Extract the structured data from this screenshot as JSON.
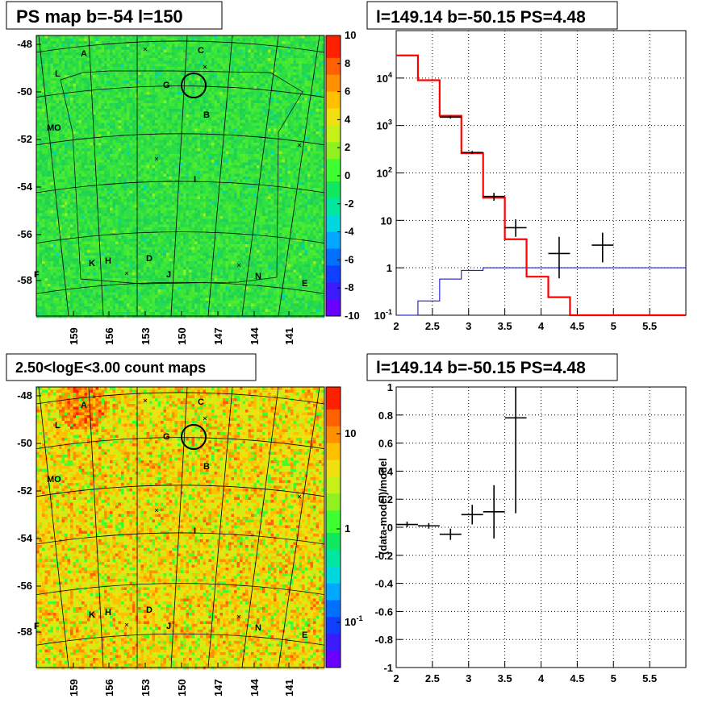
{
  "chart_data": [
    {
      "type": "heatmap",
      "title": "PS map b=-54 l=150",
      "xticks": [
        "159",
        "156",
        "153",
        "150",
        "147",
        "144",
        "141"
      ],
      "yticks": [
        "-48",
        "-50",
        "-52",
        "-54",
        "-56",
        "-58"
      ],
      "colorbar": {
        "scale": "linear",
        "ticks": [
          "10",
          "8",
          "6",
          "4",
          "2",
          "0",
          "-2",
          "-4",
          "-6",
          "-8",
          "-10"
        ],
        "range": [
          -10,
          10
        ]
      },
      "sources": [
        "A",
        "C",
        "L",
        "G",
        "B",
        "MO",
        "I",
        "K",
        "H",
        "D",
        "J",
        "N",
        "E",
        "F"
      ],
      "highlight_circle": {
        "l": 149.14,
        "b": -50.15
      }
    },
    {
      "type": "line",
      "title": "l=149.14 b=-50.15 PS=4.48",
      "xlim": [
        2,
        6
      ],
      "ylim": [
        0.1,
        100000
      ],
      "yscale": "log",
      "xticks": [
        "2",
        "2.5",
        "3",
        "3.5",
        "4",
        "4.5",
        "5",
        "5.5"
      ],
      "yticks": [
        "10^{-1}",
        "1",
        "10",
        "10^{2}",
        "10^{3}",
        "10^{4}"
      ],
      "model_red": {
        "edges": [
          2,
          2.3,
          2.6,
          2.9,
          3.2,
          3.5,
          3.8,
          4.1,
          4.4,
          4.7,
          5,
          5.3,
          5.6,
          5.9,
          6
        ],
        "values": [
          30000,
          9000,
          1600,
          260,
          30,
          4,
          0.65,
          0.24,
          0.1,
          0.1,
          0.1,
          0.1,
          0.1,
          0.1
        ]
      },
      "model_blue": {
        "edges": [
          2,
          2.3,
          2.6,
          2.9,
          3.2,
          3.5,
          3.8,
          4.1,
          4.4,
          4.7,
          5,
          5.3,
          5.6,
          5.9,
          6
        ],
        "values": [
          0.05,
          0.2,
          0.58,
          0.88,
          1,
          1,
          1,
          1,
          1,
          1,
          1,
          1,
          1,
          1
        ]
      },
      "data": [
        {
          "x": 2.75,
          "xerr": 0.15,
          "y": 1500,
          "ylo": 1400,
          "yhi": 1600
        },
        {
          "x": 3.05,
          "xerr": 0.15,
          "y": 270,
          "ylo": 250,
          "yhi": 290
        },
        {
          "x": 3.35,
          "xerr": 0.15,
          "y": 32,
          "ylo": 26,
          "yhi": 38
        },
        {
          "x": 3.65,
          "xerr": 0.15,
          "y": 7,
          "ylo": 4.5,
          "yhi": 10.5
        },
        {
          "x": 4.25,
          "xerr": 0.15,
          "y": 2,
          "ylo": 0.6,
          "yhi": 4.5
        },
        {
          "x": 4.85,
          "xerr": 0.15,
          "y": 3,
          "ylo": 1.3,
          "yhi": 5.5
        }
      ]
    },
    {
      "type": "heatmap",
      "title": "2.50<logE<3.00 count maps",
      "xticks": [
        "159",
        "156",
        "153",
        "150",
        "147",
        "144",
        "141"
      ],
      "yticks": [
        "-48",
        "-50",
        "-52",
        "-54",
        "-56",
        "-58"
      ],
      "colorbar": {
        "scale": "log",
        "ticks": [
          "10",
          "1",
          "10^{-1}"
        ]
      },
      "sources": [
        "A",
        "C",
        "L",
        "G",
        "B",
        "MO",
        "I",
        "K",
        "H",
        "D",
        "J",
        "N",
        "E",
        "F"
      ]
    },
    {
      "type": "scatter",
      "title": "l=149.14 b=-50.15 PS=4.48",
      "ylabel": "(data-model)/model",
      "xlim": [
        2,
        6
      ],
      "ylim": [
        -1,
        1
      ],
      "xticks": [
        "2",
        "2.5",
        "3",
        "3.5",
        "4",
        "4.5",
        "5",
        "5.5"
      ],
      "yticks": [
        "1",
        "0.8",
        "0.6",
        "0.4",
        "0.2",
        "0",
        "-0.2",
        "-0.4",
        "-0.6",
        "-0.8",
        "-1"
      ],
      "data": [
        {
          "x": 2.15,
          "xerr": 0.15,
          "y": 0.02,
          "ylo": 0.0,
          "yhi": 0.04
        },
        {
          "x": 2.45,
          "xerr": 0.15,
          "y": 0.01,
          "ylo": -0.01,
          "yhi": 0.03
        },
        {
          "x": 2.75,
          "xerr": 0.15,
          "y": -0.05,
          "ylo": -0.09,
          "yhi": -0.01
        },
        {
          "x": 3.05,
          "xerr": 0.15,
          "y": 0.09,
          "ylo": 0.02,
          "yhi": 0.16
        },
        {
          "x": 3.35,
          "xerr": 0.15,
          "y": 0.11,
          "ylo": -0.08,
          "yhi": 0.3
        },
        {
          "x": 3.65,
          "xerr": 0.15,
          "y": 0.78,
          "ylo": 0.1,
          "yhi": 1.0
        }
      ]
    }
  ],
  "colors": {
    "red": "#ff0000",
    "blue": "#0000cc",
    "map_green": "#22dd44",
    "count_base": "#e8d830"
  }
}
